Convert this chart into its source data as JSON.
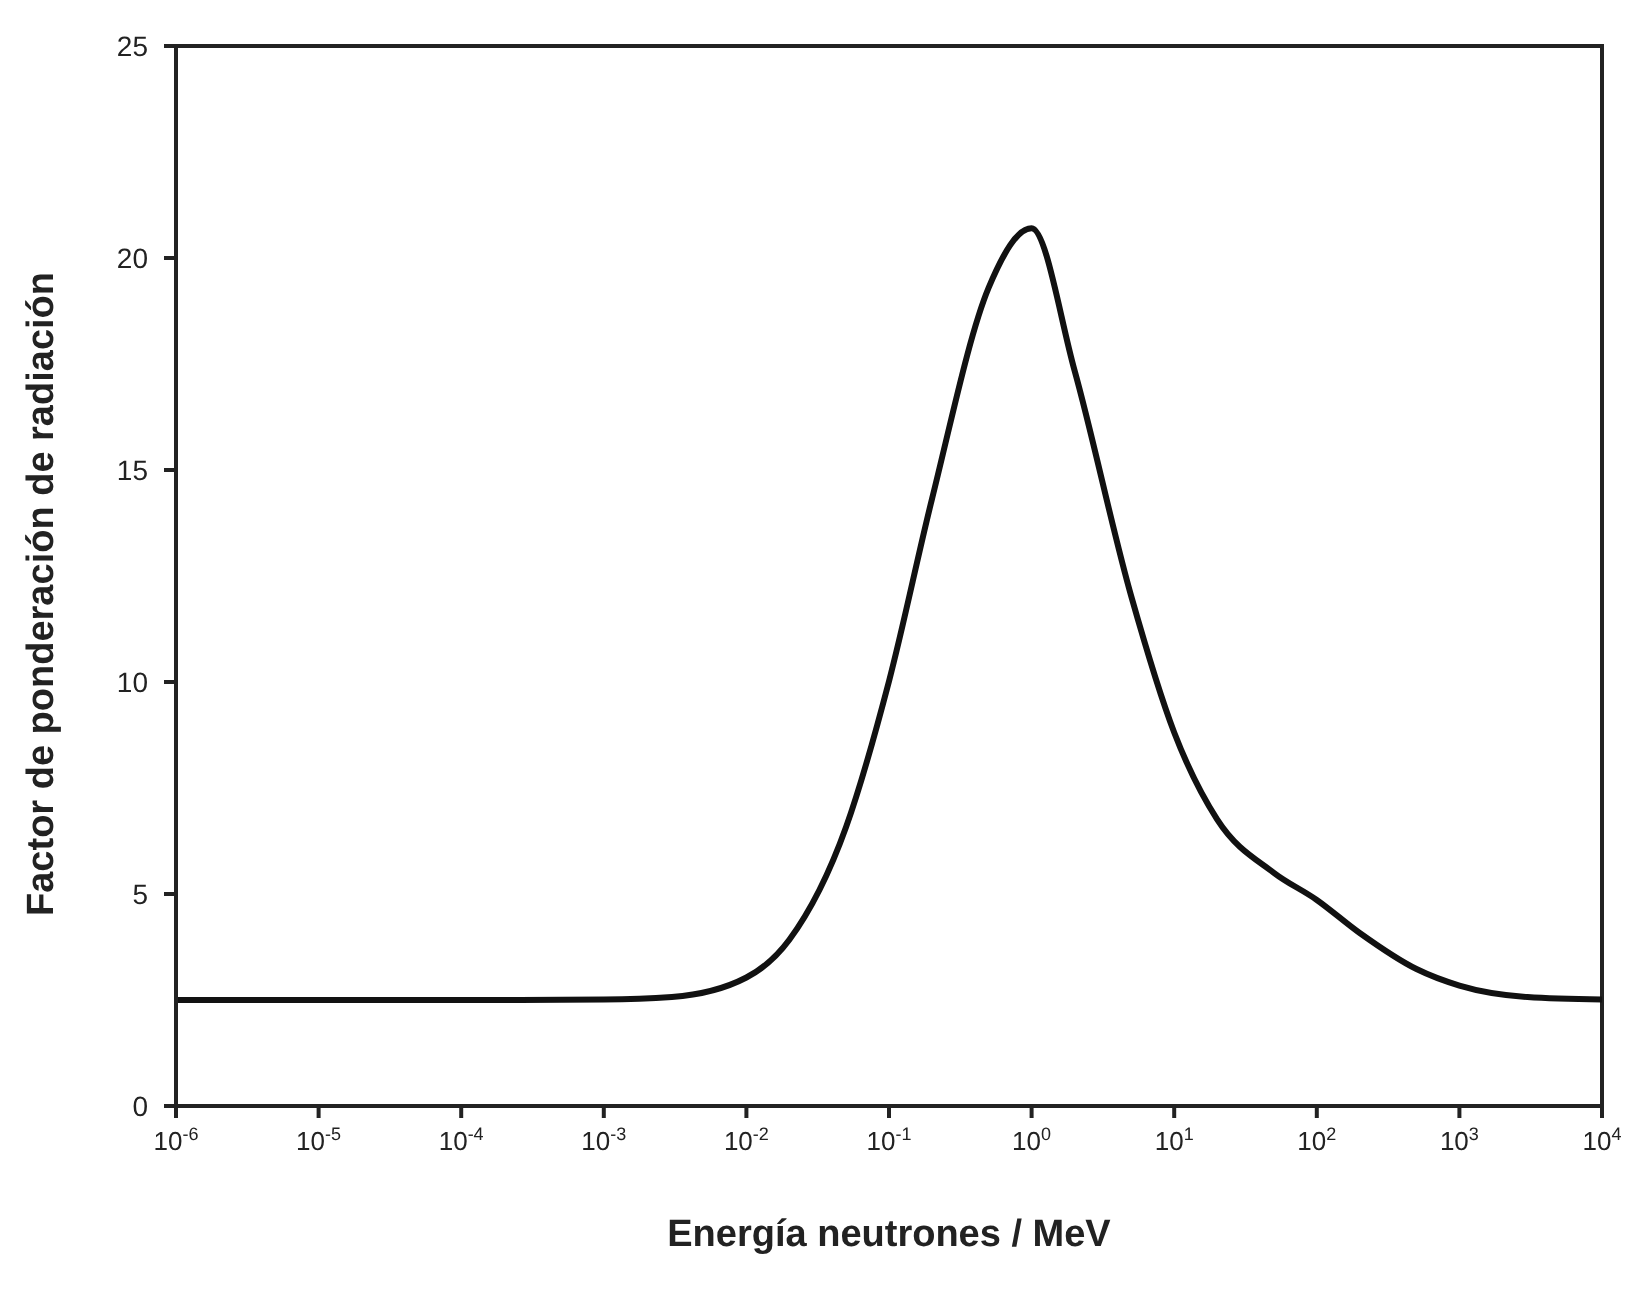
{
  "chart_data": {
    "type": "line",
    "xlabel": "Energía neutrones / MeV",
    "ylabel": "Factor de ponderación de radiación",
    "x": [
      1e-06,
      1e-05,
      0.0001,
      0.001,
      0.003,
      0.01,
      0.02,
      0.05,
      0.1,
      0.2,
      0.5,
      1,
      2,
      5,
      10,
      20,
      50,
      100,
      200,
      500,
      1000,
      3000,
      10000
    ],
    "series": [
      {
        "color": "#111111",
        "values": [
          2.5,
          2.5,
          2.5,
          2.51,
          2.57,
          3.03,
          3.92,
          6.58,
          10.02,
          14.31,
          19.3,
          20.7,
          17.35,
          12.02,
          8.81,
          6.76,
          5.5,
          4.86,
          4.08,
          3.23,
          2.84,
          2.57,
          2.51
        ]
      }
    ],
    "log": "x",
    "xlim": [
      1e-06,
      10000
    ],
    "xticks": [
      {
        "value": 1e-06,
        "label": "10$^{-6}$"
      },
      {
        "value": 1e-05,
        "label": "10$^{-5}$"
      },
      {
        "value": 0.0001,
        "label": "10$^{-4}$"
      },
      {
        "value": 0.001,
        "label": "10$^{-3}$"
      },
      {
        "value": 0.01,
        "label": "10$^{-2}$"
      },
      {
        "value": 0.1,
        "label": "10$^{-1}$"
      },
      {
        "value": 1,
        "label": "10$^{0}$"
      },
      {
        "value": 10,
        "label": "10$^{1}$"
      },
      {
        "value": 100,
        "label": "10$^{2}$"
      },
      {
        "value": 1000,
        "label": "10$^{3}$"
      },
      {
        "value": 10000,
        "label": "10$^{4}$"
      }
    ],
    "ylim": [
      0,
      25
    ],
    "yticks": [
      0,
      5,
      10,
      15,
      20,
      25
    ],
    "grid": false,
    "marker": "none",
    "line_style": "solid"
  }
}
